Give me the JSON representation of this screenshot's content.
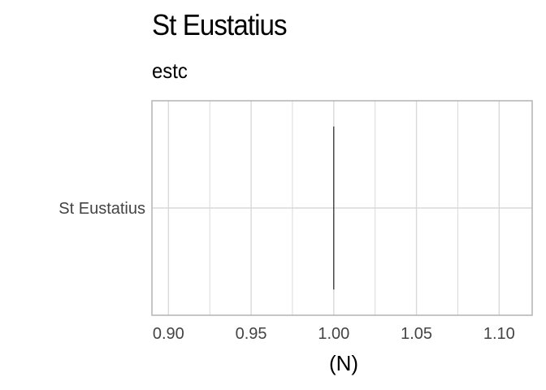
{
  "title": "St Eustatius",
  "subtitle": "estc",
  "chart_data": {
    "type": "bar",
    "orientation": "horizontal",
    "title": "St Eustatius",
    "subtitle": "estc",
    "categories": [
      "St Eustatius"
    ],
    "values": [
      1.0
    ],
    "xlabel": "(N)",
    "ylabel": "",
    "xlim": [
      0.89,
      1.12
    ],
    "x_ticks": [
      0.9,
      0.95,
      1.0,
      1.05,
      1.1
    ],
    "x_tick_labels": [
      "0.90",
      "0.95",
      "1.00",
      "1.05",
      "1.10"
    ],
    "grid": true,
    "bar_color": "#000000",
    "grid_color": "#d9d9d9",
    "panel_border_color": "#b3b3b3"
  }
}
